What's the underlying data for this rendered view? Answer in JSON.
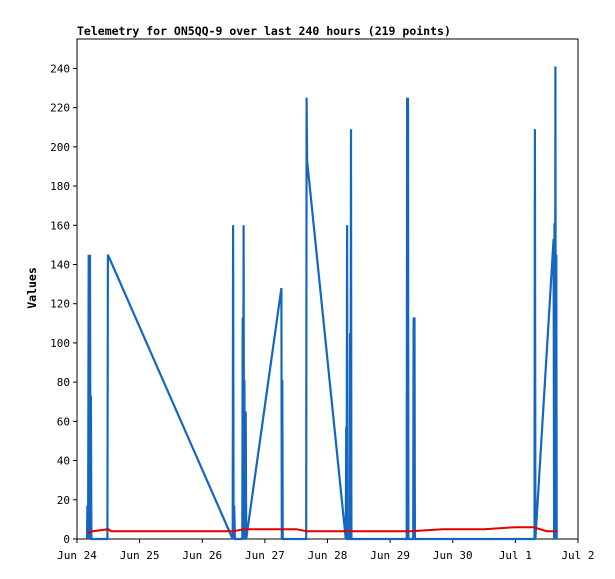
{
  "chart_data": {
    "type": "line",
    "title": "Telemetry for ON5QQ-9 over last 240 hours (219 points)",
    "xlabel": "",
    "ylabel": "Values",
    "xlim": [
      "2024-06-24T00:00",
      "2024-07-02T00:00"
    ],
    "ylim": [
      0,
      255
    ],
    "x_ticks": [
      "Jun 24",
      "Jun 25",
      "Jun 26",
      "Jun 27",
      "Jun 28",
      "Jun 29",
      "Jun 30",
      "Jul 1",
      "Jul 2"
    ],
    "y_ticks": [
      0,
      20,
      40,
      60,
      80,
      100,
      120,
      140,
      160,
      180,
      200,
      220,
      240
    ],
    "grid": false,
    "legend": "none",
    "series": [
      {
        "color": "#1566c0",
        "points": [
          [
            "2024-06-24T03:50",
            0
          ],
          [
            "2024-06-24T04:00",
            17
          ],
          [
            "2024-06-24T04:15",
            0
          ],
          [
            "2024-06-24T04:30",
            145
          ],
          [
            "2024-06-24T04:45",
            0
          ],
          [
            "2024-06-24T05:00",
            145
          ],
          [
            "2024-06-24T05:10",
            0
          ],
          [
            "2024-06-24T05:20",
            73
          ],
          [
            "2024-06-24T05:30",
            0
          ],
          [
            "2024-06-24T11:40",
            0
          ],
          [
            "2024-06-24T11:50",
            145
          ],
          [
            "2024-06-26T11:40",
            0
          ],
          [
            "2024-06-26T11:50",
            160
          ],
          [
            "2024-06-26T12:00",
            0
          ],
          [
            "2024-06-26T12:15",
            17
          ],
          [
            "2024-06-26T12:30",
            0
          ],
          [
            "2024-06-26T15:20",
            0
          ],
          [
            "2024-06-26T15:30",
            113
          ],
          [
            "2024-06-26T15:40",
            0
          ],
          [
            "2024-06-26T15:50",
            160
          ],
          [
            "2024-06-26T16:00",
            0
          ],
          [
            "2024-06-26T16:10",
            81
          ],
          [
            "2024-06-26T16:20",
            0
          ],
          [
            "2024-06-26T16:40",
            65
          ],
          [
            "2024-06-26T16:50",
            0
          ],
          [
            "2024-06-27T06:20",
            128
          ],
          [
            "2024-06-27T06:30",
            0
          ],
          [
            "2024-06-27T06:40",
            81
          ],
          [
            "2024-06-27T06:50",
            0
          ],
          [
            "2024-06-27T15:50",
            0
          ],
          [
            "2024-06-27T16:00",
            225
          ],
          [
            "2024-06-27T16:10",
            193
          ],
          [
            "2024-06-28T07:00",
            0
          ],
          [
            "2024-06-28T07:10",
            57
          ],
          [
            "2024-06-28T07:20",
            0
          ],
          [
            "2024-06-28T07:30",
            160
          ],
          [
            "2024-06-28T07:40",
            0
          ],
          [
            "2024-06-28T08:30",
            0
          ],
          [
            "2024-06-28T08:40",
            105
          ],
          [
            "2024-06-28T08:50",
            0
          ],
          [
            "2024-06-28T09:00",
            209
          ],
          [
            "2024-06-28T09:10",
            0
          ],
          [
            "2024-06-29T06:20",
            0
          ],
          [
            "2024-06-29T06:30",
            225
          ],
          [
            "2024-06-29T06:40",
            0
          ],
          [
            "2024-06-29T06:50",
            225
          ],
          [
            "2024-06-29T07:00",
            0
          ],
          [
            "2024-06-29T08:50",
            0
          ],
          [
            "2024-06-29T09:00",
            113
          ],
          [
            "2024-06-29T09:10",
            0
          ],
          [
            "2024-06-29T09:20",
            113
          ],
          [
            "2024-06-29T09:30",
            0
          ],
          [
            "2024-07-01T07:20",
            0
          ],
          [
            "2024-07-01T07:30",
            209
          ],
          [
            "2024-07-01T07:40",
            0
          ],
          [
            "2024-07-01T14:40",
            153
          ],
          [
            "2024-07-01T14:50",
            0
          ],
          [
            "2024-07-01T15:00",
            161
          ],
          [
            "2024-07-01T15:10",
            0
          ],
          [
            "2024-07-01T15:20",
            241
          ],
          [
            "2024-07-01T15:30",
            0
          ],
          [
            "2024-07-01T15:40",
            145
          ],
          [
            "2024-07-01T15:50",
            0
          ]
        ]
      },
      {
        "color": "#e00000",
        "points": [
          [
            "2024-06-24T04:00",
            3
          ],
          [
            "2024-06-24T06:00",
            4
          ],
          [
            "2024-06-24T12:00",
            5
          ],
          [
            "2024-06-24T13:00",
            4
          ],
          [
            "2024-06-26T12:00",
            4
          ],
          [
            "2024-06-26T16:00",
            5
          ],
          [
            "2024-06-27T04:00",
            5
          ],
          [
            "2024-06-27T12:00",
            5
          ],
          [
            "2024-06-27T16:00",
            4
          ],
          [
            "2024-06-29T08:00",
            4
          ],
          [
            "2024-06-29T20:00",
            5
          ],
          [
            "2024-06-30T12:00",
            5
          ],
          [
            "2024-07-01T00:00",
            6
          ],
          [
            "2024-07-01T07:00",
            6
          ],
          [
            "2024-07-01T12:00",
            4
          ],
          [
            "2024-07-01T16:00",
            4
          ]
        ]
      }
    ]
  }
}
